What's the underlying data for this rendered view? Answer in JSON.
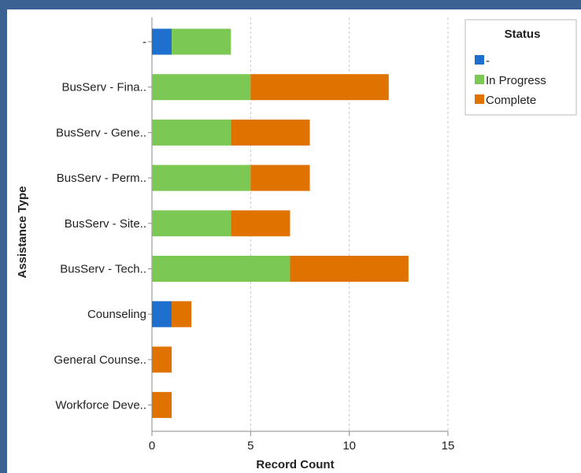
{
  "chart_data": {
    "type": "bar",
    "orientation": "horizontal",
    "stacked": true,
    "xlabel": "Record Count",
    "ylabel": "Assistance Type",
    "xlim": [
      0,
      15
    ],
    "x_ticks": [
      "0",
      "5",
      "10",
      "15"
    ],
    "grid": "vertical dashed",
    "categories": [
      "-",
      "BusServ - Fina..",
      "BusServ - Gene..",
      "BusServ - Perm..",
      "BusServ - Site..",
      "BusServ - Tech..",
      "Counseling",
      "General Counse..",
      "Workforce Deve.."
    ],
    "series": [
      {
        "name": "-",
        "color": "#1f6fce",
        "values": [
          1,
          0,
          0,
          0,
          0,
          0,
          1,
          0,
          0
        ]
      },
      {
        "name": "In Progress",
        "color": "#7cc855",
        "values": [
          3,
          5,
          4,
          5,
          4,
          7,
          0,
          0,
          0
        ]
      },
      {
        "name": "Complete",
        "color": "#e07200",
        "values": [
          0,
          7,
          4,
          3,
          3,
          6,
          1,
          1,
          1
        ]
      }
    ],
    "legend": {
      "title": "Status",
      "placement": "top-right"
    }
  }
}
